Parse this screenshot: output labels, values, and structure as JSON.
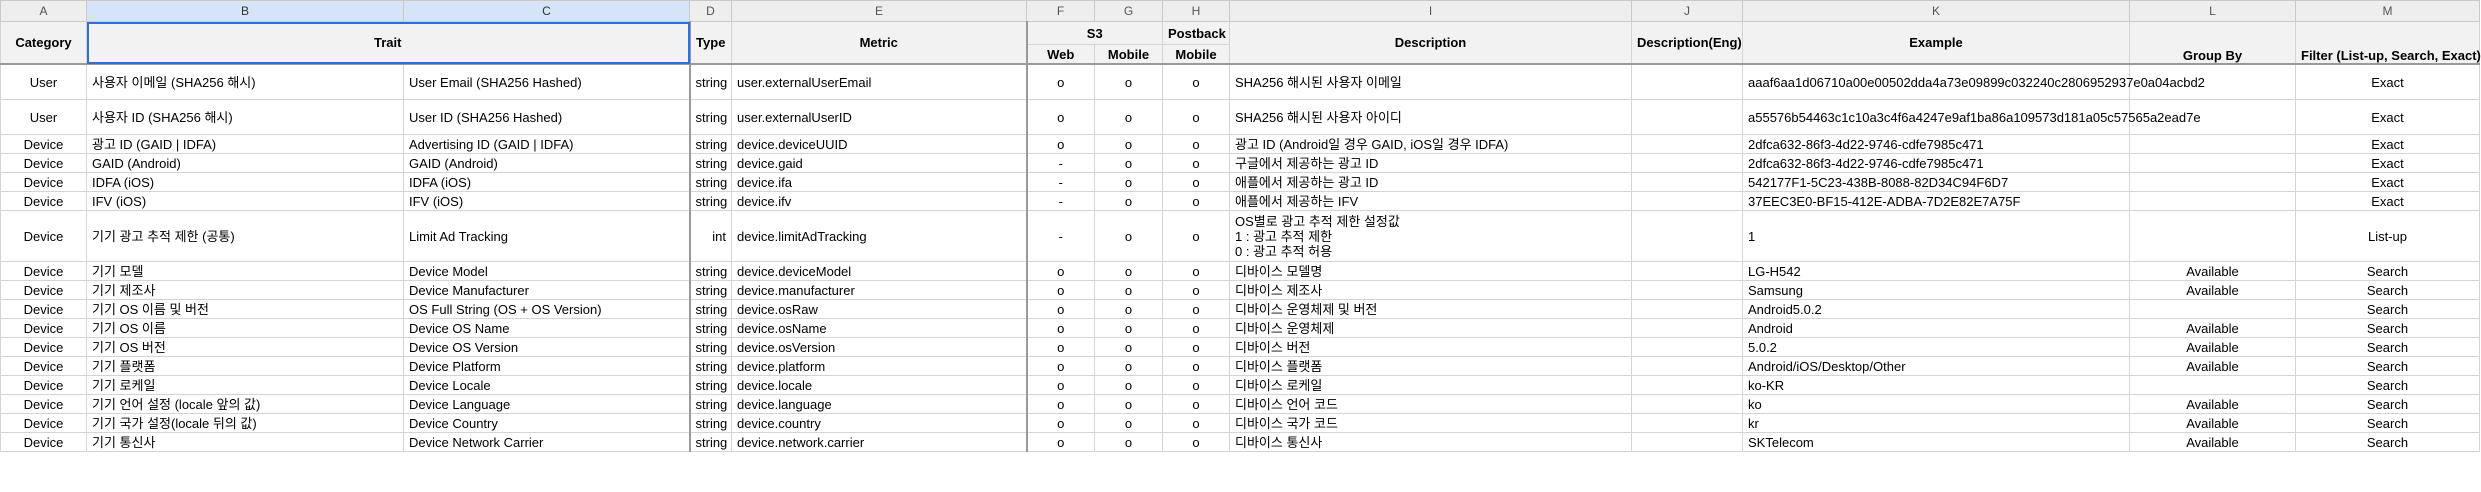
{
  "columns": [
    "A",
    "B",
    "C",
    "D",
    "E",
    "F",
    "G",
    "H",
    "I",
    "J",
    "K",
    "L",
    "M"
  ],
  "header": {
    "category": "Category",
    "trait": "Trait",
    "type": "Type",
    "metric": "Metric",
    "s3": "S3",
    "postback": "Postback",
    "web": "Web",
    "mobile_s3": "Mobile",
    "mobile_pb": "Mobile",
    "description": "Description",
    "description_eng": "Description(Eng)",
    "example": "Example",
    "group_by": "Group By",
    "filter": "Filter (List-up, Search, Exact)"
  },
  "rows": [
    {
      "category": "User",
      "trait_ko": "사용자 이메일 (SHA256 해시)",
      "trait_en": "User Email (SHA256 Hashed)",
      "type": "string",
      "metric": "user.externalUserEmail",
      "web": "o",
      "mobile": "o",
      "pb": "o",
      "desc": "SHA256 해시된 사용자 이메일",
      "desc_eng": "",
      "example": "aaaf6aa1d06710a00e00502dda4a73e09899c032240c2806952937e0a04acbd2",
      "group": "",
      "filter": "Exact"
    },
    {
      "category": "User",
      "trait_ko": "사용자 ID (SHA256 해시)",
      "trait_en": "User ID (SHA256 Hashed)",
      "type": "string",
      "metric": "user.externalUserID",
      "web": "o",
      "mobile": "o",
      "pb": "o",
      "desc": "SHA256 해시된 사용자 아이디",
      "desc_eng": "",
      "example": "a55576b54463c1c10a3c4f6a4247e9af1ba86a109573d181a05c57565a2ead7e",
      "group": "",
      "filter": "Exact"
    },
    {
      "category": "Device",
      "trait_ko": "광고 ID (GAID | IDFA)",
      "trait_en": "Advertising ID (GAID | IDFA)",
      "type": "string",
      "metric": "device.deviceUUID",
      "web": "o",
      "mobile": "o",
      "pb": "o",
      "desc": "광고 ID (Android일 경우 GAID, iOS일 경우 IDFA)",
      "desc_eng": "",
      "example": "2dfca632-86f3-4d22-9746-cdfe7985c471",
      "group": "",
      "filter": "Exact"
    },
    {
      "category": "Device",
      "trait_ko": "GAID (Android)",
      "trait_en": "GAID (Android)",
      "type": "string",
      "metric": "device.gaid",
      "web": "-",
      "mobile": "o",
      "pb": "o",
      "desc": "구글에서 제공하는 광고 ID",
      "desc_eng": "",
      "example": "2dfca632-86f3-4d22-9746-cdfe7985c471",
      "group": "",
      "filter": "Exact"
    },
    {
      "category": "Device",
      "trait_ko": "IDFA (iOS)",
      "trait_en": "IDFA (iOS)",
      "type": "string",
      "metric": "device.ifa",
      "web": "-",
      "mobile": "o",
      "pb": "o",
      "desc": "애플에서 제공하는 광고 ID",
      "desc_eng": "",
      "example": "542177F1-5C23-438B-8088-82D34C94F6D7",
      "group": "",
      "filter": "Exact"
    },
    {
      "category": "Device",
      "trait_ko": "IFV (iOS)",
      "trait_en": "IFV (iOS)",
      "type": "string",
      "metric": "device.ifv",
      "web": "-",
      "mobile": "o",
      "pb": "o",
      "desc": "애플에서 제공하는 IFV",
      "desc_eng": "",
      "example": "37EEC3E0-BF15-412E-ADBA-7D2E82E7A75F",
      "group": "",
      "filter": "Exact"
    },
    {
      "category": "Device",
      "trait_ko": "기기 광고 추적 제한 (공통)",
      "trait_en": "Limit Ad Tracking",
      "type": "int",
      "metric": "device.limitAdTracking",
      "web": "-",
      "mobile": "o",
      "pb": "o",
      "desc": "OS별로 광고 추적 제한 설정값\n1 : 광고 추적 제한\n0 : 광고 추적 허용",
      "desc_eng": "",
      "example": "1",
      "group": "",
      "filter": "List-up"
    },
    {
      "category": "Device",
      "trait_ko": "기기 모델",
      "trait_en": "Device Model",
      "type": "string",
      "metric": "device.deviceModel",
      "web": "o",
      "mobile": "o",
      "pb": "o",
      "desc": "디바이스 모델명",
      "desc_eng": "",
      "example": "LG-H542",
      "group": "Available",
      "filter": "Search"
    },
    {
      "category": "Device",
      "trait_ko": "기기 제조사",
      "trait_en": "Device Manufacturer",
      "type": "string",
      "metric": "device.manufacturer",
      "web": "o",
      "mobile": "o",
      "pb": "o",
      "desc": "디바이스 제조사",
      "desc_eng": "",
      "example": "Samsung",
      "group": "Available",
      "filter": "Search"
    },
    {
      "category": "Device",
      "trait_ko": "기기 OS 이름 및 버전",
      "trait_en": "OS Full String (OS + OS Version)",
      "type": "string",
      "metric": "device.osRaw",
      "web": "o",
      "mobile": "o",
      "pb": "o",
      "desc": "디바이스 운영체제 및 버전",
      "desc_eng": "",
      "example": "Android5.0.2",
      "group": "",
      "filter": "Search"
    },
    {
      "category": "Device",
      "trait_ko": "기기 OS 이름",
      "trait_en": "Device OS Name",
      "type": "string",
      "metric": "device.osName",
      "web": "o",
      "mobile": "o",
      "pb": "o",
      "desc": "디바이스 운영체제",
      "desc_eng": "",
      "example": "Android",
      "group": "Available",
      "filter": "Search"
    },
    {
      "category": "Device",
      "trait_ko": "기기 OS 버전",
      "trait_en": "Device OS Version",
      "type": "string",
      "metric": "device.osVersion",
      "web": "o",
      "mobile": "o",
      "pb": "o",
      "desc": "디바이스 버전",
      "desc_eng": "",
      "example": "5.0.2",
      "group": "Available",
      "filter": "Search"
    },
    {
      "category": "Device",
      "trait_ko": "기기 플랫폼",
      "trait_en": "Device Platform",
      "type": "string",
      "metric": "device.platform",
      "web": "o",
      "mobile": "o",
      "pb": "o",
      "desc": "디바이스 플랫폼",
      "desc_eng": "",
      "example": "Android/iOS/Desktop/Other",
      "group": "Available",
      "filter": "Search"
    },
    {
      "category": "Device",
      "trait_ko": "기기 로케일",
      "trait_en": "Device Locale",
      "type": "string",
      "metric": "device.locale",
      "web": "o",
      "mobile": "o",
      "pb": "o",
      "desc": "디바이스 로케일",
      "desc_eng": "",
      "example": "ko-KR",
      "group": "",
      "filter": "Search"
    },
    {
      "category": "Device",
      "trait_ko": "기기 언어 설정 (locale 앞의 값)",
      "trait_en": "Device Language",
      "type": "string",
      "metric": "device.language",
      "web": "o",
      "mobile": "o",
      "pb": "o",
      "desc": "디바이스 언어 코드",
      "desc_eng": "",
      "example": "ko",
      "group": "Available",
      "filter": "Search"
    },
    {
      "category": "Device",
      "trait_ko": "기기 국가 설정(locale 뒤의 값)",
      "trait_en": "Device Country",
      "type": "string",
      "metric": "device.country",
      "web": "o",
      "mobile": "o",
      "pb": "o",
      "desc": "디바이스 국가 코드",
      "desc_eng": "",
      "example": "kr",
      "group": "Available",
      "filter": "Search"
    },
    {
      "category": "Device",
      "trait_ko": "기기 통신사",
      "trait_en": "Device Network Carrier",
      "type": "string",
      "metric": "device.network.carrier",
      "web": "o",
      "mobile": "o",
      "pb": "o",
      "desc": "디바이스 통신사",
      "desc_eng": "",
      "example": "SKTelecom",
      "group": "Available",
      "filter": "Search"
    }
  ]
}
